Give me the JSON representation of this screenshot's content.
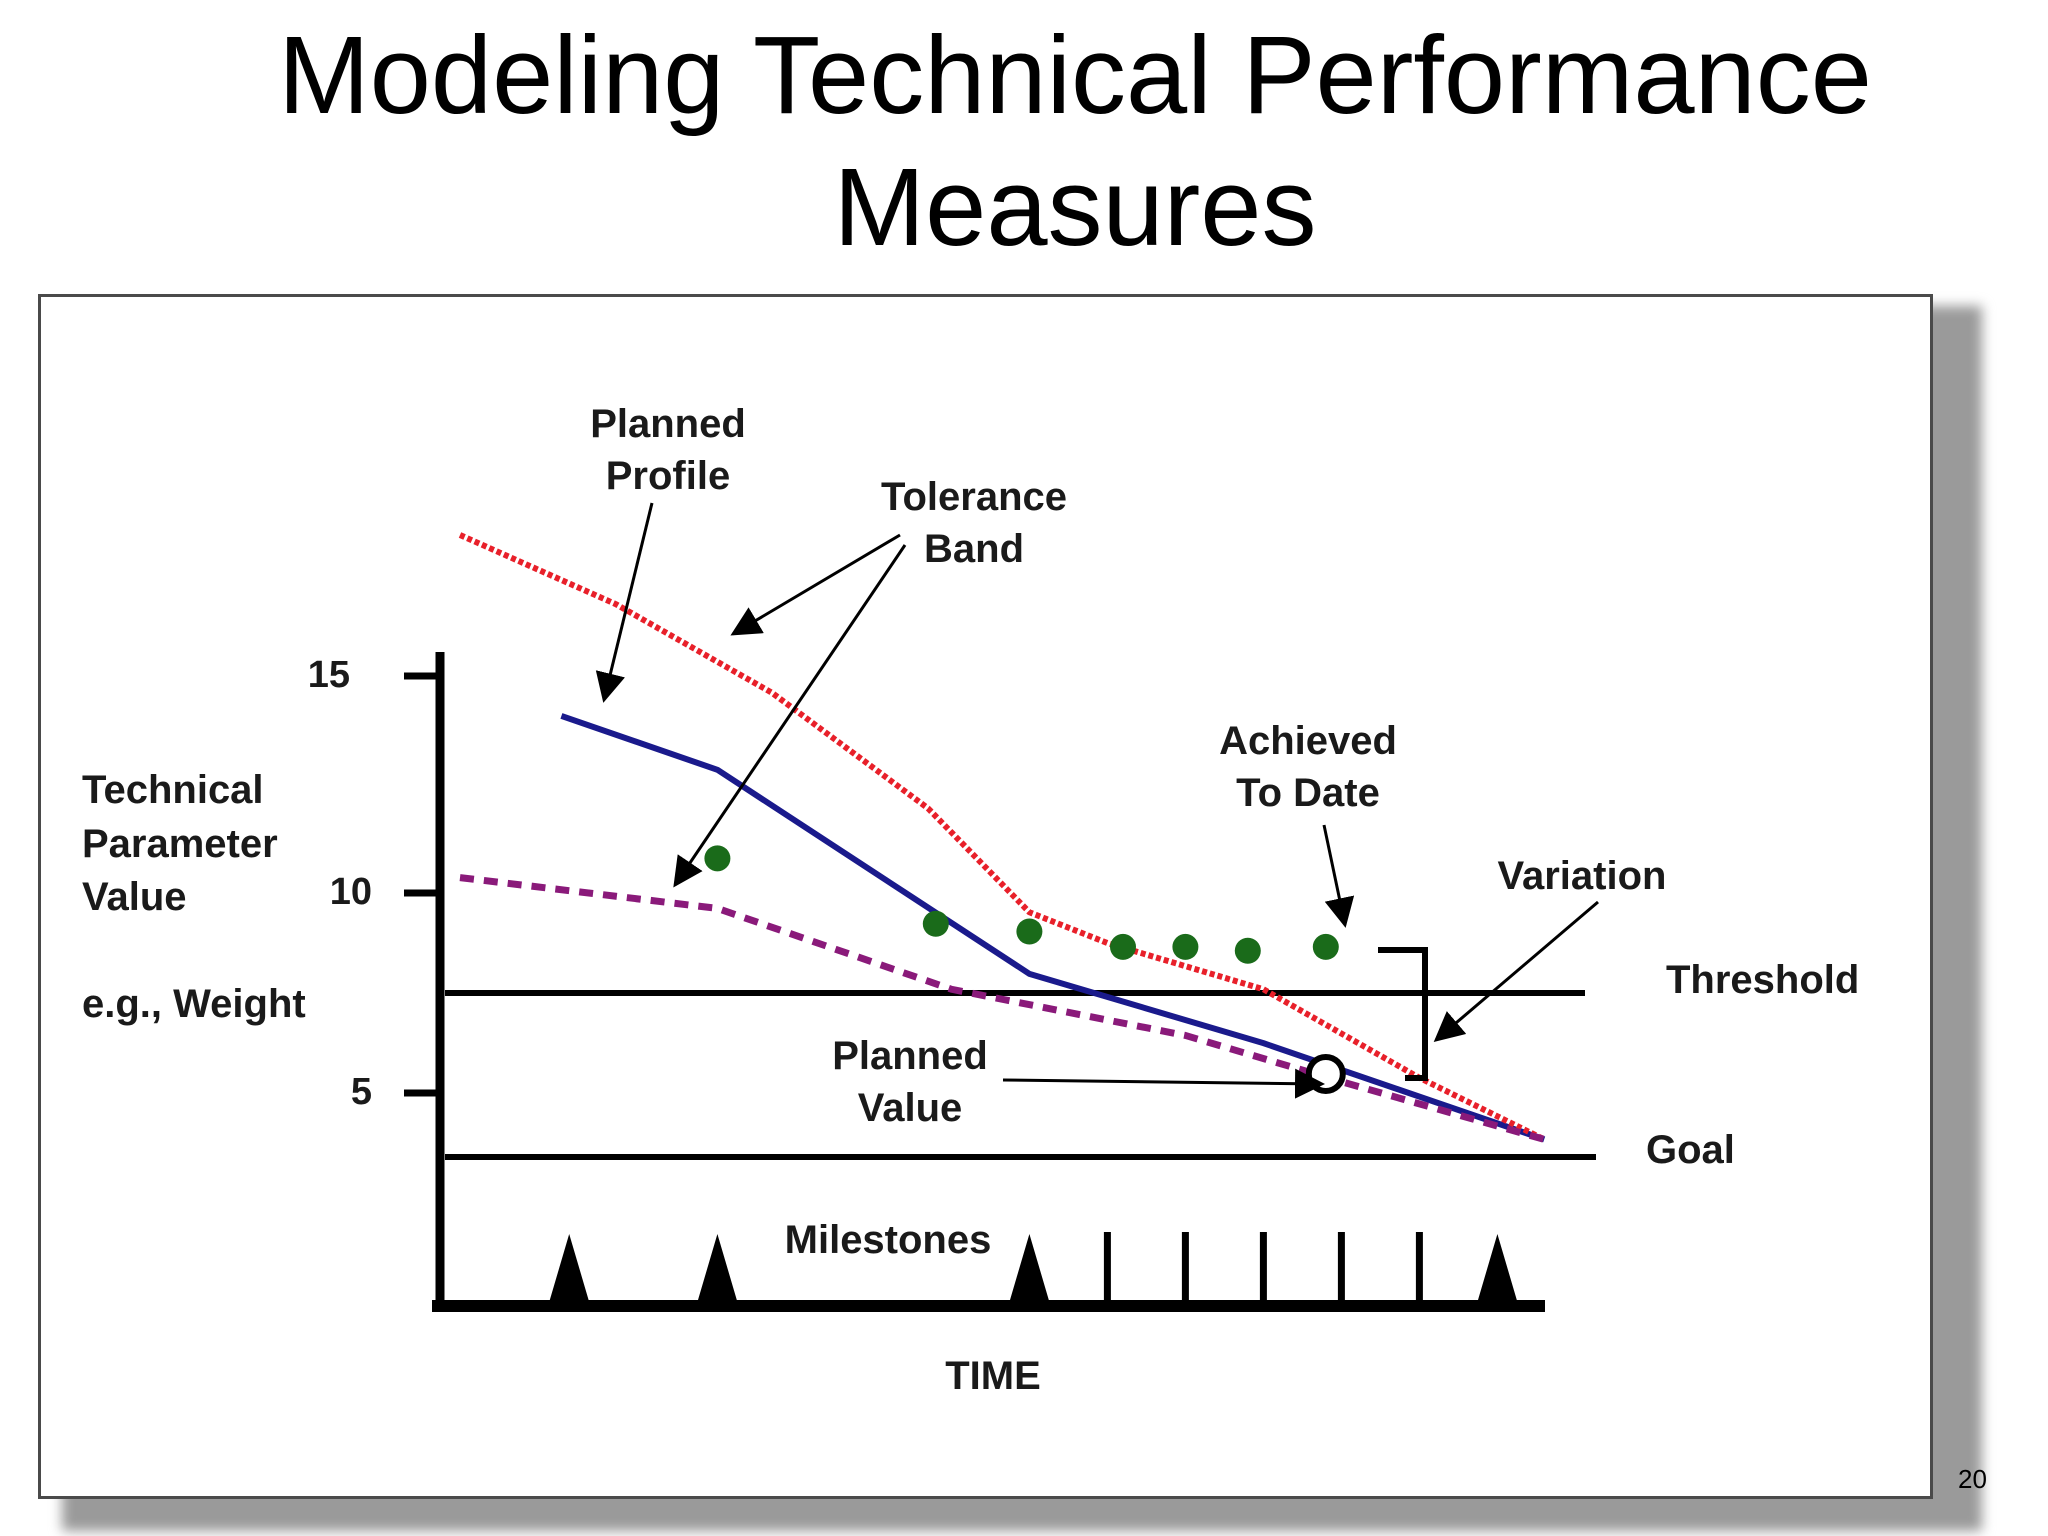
{
  "slide": {
    "title_line1": "Modeling Technical Performance",
    "title_line2": "Measures",
    "page_number": "20"
  },
  "chart_data": {
    "type": "line",
    "title": "",
    "xlabel": "TIME",
    "ylabel_lines": [
      "Technical",
      "Parameter",
      "Value"
    ],
    "ylabel_example": "e.g., Weight",
    "yticks": [
      15,
      10,
      5
    ],
    "ylim": [
      0,
      20
    ],
    "milestones_label": "Milestones",
    "milestones": [
      {
        "t": 1.4,
        "kind": "triangle"
      },
      {
        "t": 3.3,
        "kind": "triangle"
      },
      {
        "t": 7.3,
        "kind": "triangle"
      },
      {
        "t": 8.3,
        "kind": "bar"
      },
      {
        "t": 9.3,
        "kind": "bar"
      },
      {
        "t": 10.3,
        "kind": "bar"
      },
      {
        "t": 11.3,
        "kind": "bar"
      },
      {
        "t": 12.3,
        "kind": "bar"
      },
      {
        "t": 13.3,
        "kind": "triangle"
      }
    ],
    "series": [
      {
        "name": "Planned Profile",
        "color": "#1a1a8c",
        "style": "solid",
        "points": [
          [
            1.3,
            14.6
          ],
          [
            3.3,
            13.2
          ],
          [
            7.3,
            7.9
          ],
          [
            10.3,
            6.1
          ],
          [
            13.9,
            3.6
          ]
        ]
      },
      {
        "name": "Tolerance Band (upper)",
        "color": "#e8202a",
        "style": "dotted",
        "points": [
          [
            0.0,
            19.3
          ],
          [
            2.0,
            17.5
          ],
          [
            4.0,
            15.2
          ],
          [
            6.0,
            12.2
          ],
          [
            7.3,
            9.5
          ],
          [
            8.3,
            8.7
          ],
          [
            10.3,
            7.5
          ],
          [
            12.3,
            5.2
          ],
          [
            13.9,
            3.6
          ]
        ]
      },
      {
        "name": "Tolerance Band (lower)",
        "color": "#8a1a7a",
        "style": "dashed",
        "points": [
          [
            0.0,
            10.4
          ],
          [
            3.3,
            9.6
          ],
          [
            6.3,
            7.5
          ],
          [
            9.3,
            6.3
          ],
          [
            11.3,
            5.1
          ],
          [
            13.9,
            3.6
          ]
        ]
      }
    ],
    "achieved_to_date": {
      "name": "Achieved To Date",
      "color": "#1a6b1a",
      "points": [
        [
          3.3,
          10.9
        ],
        [
          6.1,
          9.2
        ],
        [
          7.3,
          9.0
        ],
        [
          8.5,
          8.6
        ],
        [
          9.3,
          8.6
        ],
        [
          10.1,
          8.5
        ],
        [
          11.1,
          8.6
        ]
      ]
    },
    "planned_value_point": [
      11.1,
      5.3
    ],
    "threshold": {
      "label": "Threshold",
      "value": 7.5
    },
    "goal": {
      "label": "Goal",
      "value": 3.6
    },
    "annotations": {
      "planned_profile": [
        "Planned",
        "Profile"
      ],
      "tolerance_band": [
        "Tolerance",
        "Band"
      ],
      "achieved_to_date": [
        "Achieved",
        "To Date"
      ],
      "variation": "Variation",
      "planned_value": [
        "Planned",
        "Value"
      ]
    }
  }
}
